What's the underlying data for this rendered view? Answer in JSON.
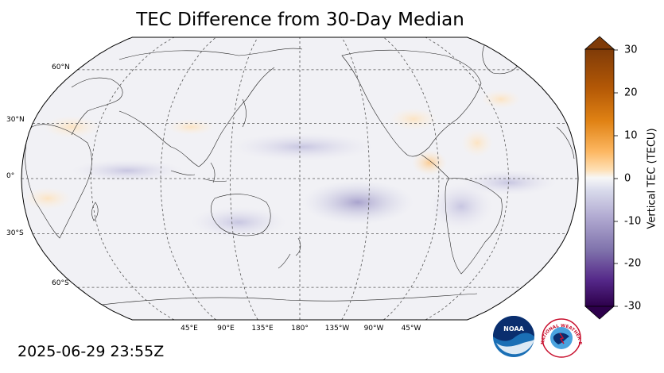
{
  "title": "TEC Difference from 30-Day Median",
  "timestamp": "2025-06-29 23:55Z",
  "map": {
    "projection": "Robinson, centered on 180°",
    "lat_labels": [
      "60°N",
      "30°N",
      "0°",
      "30°S",
      "60°S"
    ],
    "lon_labels": [
      "45°E",
      "90°E",
      "135°E",
      "180°",
      "135°W",
      "90°W",
      "45°W"
    ]
  },
  "colorbar": {
    "label": "Vertical TEC (TECU)",
    "ticks": [
      "30",
      "20",
      "10",
      "0",
      "-10",
      "-20",
      "-30"
    ],
    "range": [
      -30,
      30
    ],
    "colors": {
      "top": "#7f3b08",
      "orange": "#e08214",
      "light_orange": "#fdb863",
      "neutral": "#f7f7f7",
      "light_purple": "#b2abd2",
      "purple": "#8073ac",
      "bottom": "#2d004b"
    }
  },
  "logos": {
    "noaa": "NOAA",
    "nws": "NATIONAL WEATHER SERVICE"
  }
}
